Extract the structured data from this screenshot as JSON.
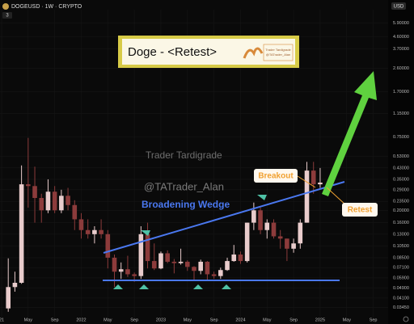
{
  "symbol": "DOGEUSD · 1W · CRYPTO",
  "header_badge": "3",
  "currency": "USD",
  "chart_data": {
    "type": "candlestick",
    "title": "Doge - <Retest>",
    "annotations": [
      "Trader Tardigrade",
      "@TATrader_Alan",
      "Broadening Wedge",
      "Breakout",
      "Retest"
    ],
    "log_scale": true,
    "up_color": "#e9cccc",
    "down_color": "#8c3b3b",
    "x": [
      "2021-02",
      "2021-03",
      "2021-04",
      "2021-05",
      "2021-06",
      "2021-07",
      "2021-08",
      "2021-09",
      "2021-10",
      "2021-11",
      "2021-12",
      "2022-01",
      "2022-02",
      "2022-03",
      "2022-04",
      "2022-05",
      "2022-06",
      "2022-07",
      "2022-08",
      "2022-09",
      "2022-10",
      "2022-11",
      "2022-12",
      "2023-01",
      "2023-02",
      "2023-03",
      "2023-04",
      "2023-05",
      "2023-06",
      "2023-07",
      "2023-08",
      "2023-09",
      "2023-10",
      "2023-11",
      "2023-12",
      "2024-01",
      "2024-02",
      "2024-03",
      "2024-04",
      "2024-05",
      "2024-06",
      "2024-07",
      "2024-08",
      "2024-09",
      "2024-10",
      "2024-11",
      "2024-12",
      "2025-01"
    ],
    "open": [
      0.034,
      0.05,
      0.054,
      0.32,
      0.31,
      0.25,
      0.2,
      0.28,
      0.2,
      0.26,
      0.22,
      0.17,
      0.14,
      0.13,
      0.14,
      0.13,
      0.085,
      0.066,
      0.069,
      0.063,
      0.061,
      0.13,
      0.08,
      0.07,
      0.092,
      0.079,
      0.077,
      0.079,
      0.072,
      0.067,
      0.079,
      0.063,
      0.061,
      0.068,
      0.08,
      0.09,
      0.08,
      0.16,
      0.2,
      0.14,
      0.16,
      0.125,
      0.12,
      0.1,
      0.11,
      0.16,
      0.41,
      0.32
    ],
    "high": [
      0.084,
      0.066,
      0.45,
      0.74,
      0.44,
      0.27,
      0.35,
      0.31,
      0.29,
      0.3,
      0.24,
      0.19,
      0.17,
      0.15,
      0.17,
      0.14,
      0.09,
      0.078,
      0.088,
      0.065,
      0.15,
      0.16,
      0.11,
      0.095,
      0.097,
      0.083,
      0.1,
      0.081,
      0.073,
      0.082,
      0.08,
      0.066,
      0.071,
      0.085,
      0.107,
      0.095,
      0.16,
      0.23,
      0.21,
      0.17,
      0.17,
      0.14,
      0.12,
      0.12,
      0.17,
      0.48,
      0.48,
      0.43
    ],
    "low": [
      0.032,
      0.046,
      0.053,
      0.21,
      0.16,
      0.16,
      0.19,
      0.19,
      0.19,
      0.2,
      0.14,
      0.12,
      0.12,
      0.11,
      0.12,
      0.07,
      0.05,
      0.058,
      0.06,
      0.055,
      0.058,
      0.07,
      0.068,
      0.069,
      0.077,
      0.064,
      0.075,
      0.067,
      0.056,
      0.063,
      0.057,
      0.058,
      0.058,
      0.067,
      0.079,
      0.076,
      0.078,
      0.14,
      0.13,
      0.12,
      0.12,
      0.1,
      0.08,
      0.093,
      0.1,
      0.16,
      0.27,
      0.3
    ],
    "close": [
      0.05,
      0.054,
      0.32,
      0.31,
      0.25,
      0.2,
      0.28,
      0.2,
      0.26,
      0.22,
      0.17,
      0.14,
      0.13,
      0.14,
      0.13,
      0.085,
      0.066,
      0.069,
      0.063,
      0.061,
      0.13,
      0.08,
      0.07,
      0.092,
      0.079,
      0.077,
      0.079,
      0.072,
      0.067,
      0.079,
      0.063,
      0.061,
      0.068,
      0.08,
      0.09,
      0.08,
      0.16,
      0.2,
      0.14,
      0.16,
      0.125,
      0.12,
      0.1,
      0.11,
      0.16,
      0.41,
      0.32,
      0.33
    ],
    "xticks": [
      {
        "value": "2021-01",
        "label": "21"
      },
      {
        "value": "2021-05",
        "label": "May"
      },
      {
        "value": "2021-09",
        "label": "Sep"
      },
      {
        "value": "2022-01",
        "label": "2022"
      },
      {
        "value": "2022-05",
        "label": "May"
      },
      {
        "value": "2022-09",
        "label": "Sep"
      },
      {
        "value": "2023-01",
        "label": "2023"
      },
      {
        "value": "2023-05",
        "label": "May"
      },
      {
        "value": "2023-09",
        "label": "Sep"
      },
      {
        "value": "2024-01",
        "label": "2024"
      },
      {
        "value": "2024-05",
        "label": "May"
      },
      {
        "value": "2024-09",
        "label": "Sep"
      },
      {
        "value": "2025-01",
        "label": "2025"
      },
      {
        "value": "2025-05",
        "label": "May"
      },
      {
        "value": "2025-09",
        "label": "Sep"
      }
    ],
    "xlim": [
      "2021-01",
      "2025-11"
    ],
    "ylim": [
      0.028,
      7.5
    ],
    "yticks": [
      {
        "value": 5.9,
        "label": "5.90000"
      },
      {
        "value": 4.6,
        "label": "4.60000"
      },
      {
        "value": 3.7,
        "label": "3.70000"
      },
      {
        "value": 2.6,
        "label": "2.60000"
      },
      {
        "value": 1.7,
        "label": "1.70000"
      },
      {
        "value": 1.15,
        "label": "1.15000"
      },
      {
        "value": 0.75,
        "label": "0.75000"
      },
      {
        "value": 0.53,
        "label": "0.53000"
      },
      {
        "value": 0.43,
        "label": "0.43000"
      },
      {
        "value": 0.35,
        "label": "0.35000"
      },
      {
        "value": 0.29,
        "label": "0.29000"
      },
      {
        "value": 0.235,
        "label": "0.23500"
      },
      {
        "value": 0.2,
        "label": "0.20000"
      },
      {
        "value": 0.16,
        "label": "0.16000"
      },
      {
        "value": 0.13,
        "label": "0.13000"
      },
      {
        "value": 0.105,
        "label": "0.10500"
      },
      {
        "value": 0.085,
        "label": "0.08500"
      },
      {
        "value": 0.071,
        "label": "0.07100"
      },
      {
        "value": 0.059,
        "label": "0.05900"
      },
      {
        "value": 0.049,
        "label": "0.04900"
      },
      {
        "value": 0.041,
        "label": "0.04100"
      },
      {
        "value": 0.0345,
        "label": "0.03450"
      }
    ],
    "grid": true
  }
}
